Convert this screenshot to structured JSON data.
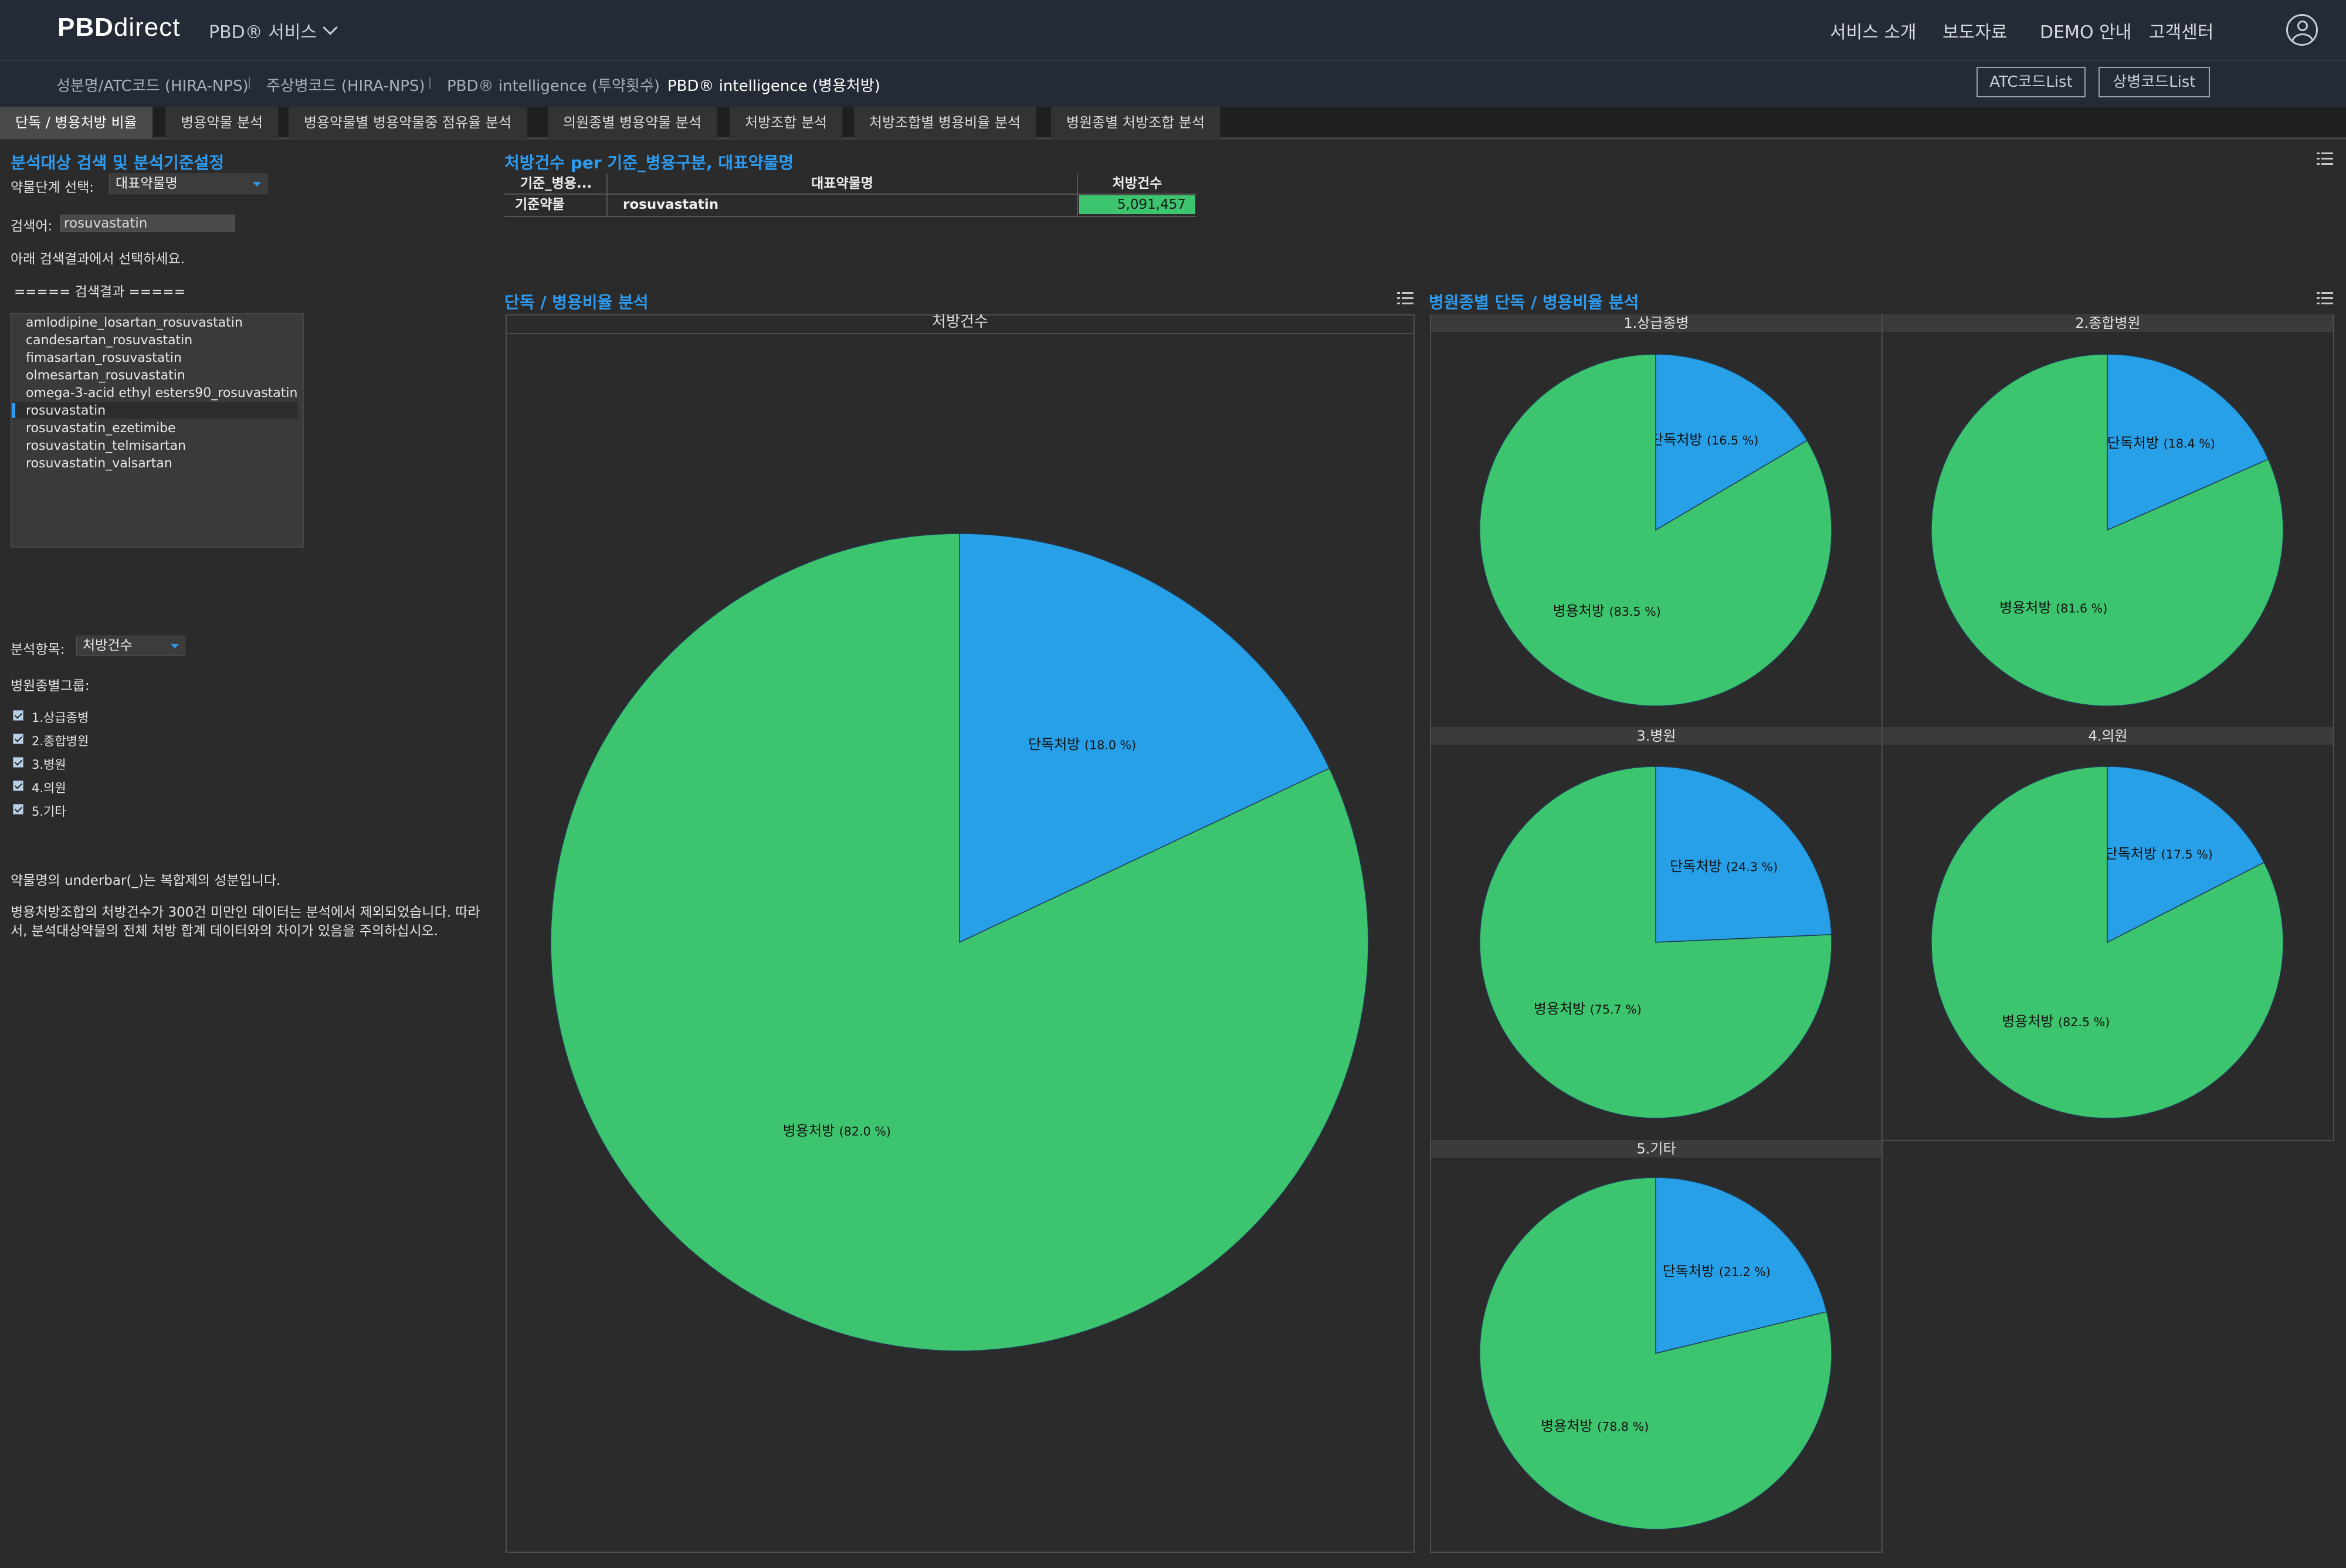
{
  "topbar": {
    "logo_bold": "PBD",
    "logo_light": "direct",
    "service_menu": "PBD® 서비스",
    "menu": [
      "서비스 소개",
      "보도자료",
      "DEMO 안내",
      "고객센터"
    ]
  },
  "subnav": {
    "items": [
      "성분명/ATC코드 (HIRA-NPS)",
      "주상병코드 (HIRA-NPS)",
      "PBD® intelligence (투약횟수)",
      "PBD® intelligence (병용처방)"
    ],
    "buttons": [
      "ATC코드List",
      "상병코드List"
    ]
  },
  "tabs": [
    "단독 / 병용처방 비율",
    "병용약물 분석",
    "병용약물별 병용약물중 점유율 분석",
    "의원종별 병용약물 분석",
    "처방조합 분석",
    "처방조합별 병용비율 분석",
    "병원종별 처방조합 분석"
  ],
  "left_panel": {
    "title": "분석대상 검색 및 분석기준설정",
    "drug_level_label": "약물단계 선택:",
    "drug_level_value": "대표약물명",
    "search_label": "검색어:",
    "search_value": "rosuvastatin",
    "select_hint": "아래 검색결과에서 선택하세요.",
    "results_header": "===== 검색결과 =====",
    "results": [
      "amlodipine_losartan_rosuvastatin",
      "candesartan_rosuvastatin",
      "fimasartan_rosuvastatin",
      "olmesartan_rosuvastatin",
      "omega-3-acid ethyl esters90_rosuvastatin",
      "rosuvastatin",
      "rosuvastatin_ezetimibe",
      "rosuvastatin_telmisartan",
      "rosuvastatin_valsartan"
    ],
    "selected_result": "rosuvastatin",
    "analysis_label": "분석항목:",
    "analysis_value": "처방건수",
    "hospital_group_label": "병원종별그룹:",
    "hospital_groups": [
      "1.상급종병",
      "2.종합병원",
      "3.병원",
      "4.의원",
      "5.기타"
    ],
    "note1": "약물명의 underbar(_)는 복합제의 성분입니다.",
    "note2": "병용처방조합의 처방건수가 300건 미만인 데이터는 분석에서 제외되었습니다. 따라서, 분석대상약물의 전체 처방 합계 데이터와의 차이가 있음을 주의하십시오."
  },
  "summary_table": {
    "title": "처방건수 per 기준_병용구분, 대표약물명",
    "headers": [
      "기준_병용...",
      "대표약물명",
      "처방건수"
    ],
    "row": [
      "기준약물",
      "rosuvastatin",
      "5,091,457"
    ]
  },
  "colors": {
    "single": "#27a0e8",
    "combo": "#3dc46e",
    "accent": "#2d9bf0"
  },
  "chart_data": [
    {
      "type": "pie",
      "title": "단독 / 병용비율 분석",
      "subtitle": "처방건수",
      "slices": [
        {
          "label": "단독처방",
          "value": 18.0,
          "text": "(18.0 %)"
        },
        {
          "label": "병용처방",
          "value": 82.0,
          "text": "(82.0 %)"
        }
      ]
    },
    {
      "type": "pie",
      "title": "병원종별 단독 / 병용비율 분석",
      "facets": [
        {
          "name": "1.상급종병",
          "slices": [
            {
              "label": "단독처방",
              "value": 16.5,
              "text": "(16.5 %)"
            },
            {
              "label": "병용처방",
              "value": 83.5,
              "text": "(83.5 %)"
            }
          ]
        },
        {
          "name": "2.종합병원",
          "slices": [
            {
              "label": "단독처방",
              "value": 18.4,
              "text": "(18.4 %)"
            },
            {
              "label": "병용처방",
              "value": 81.6,
              "text": "(81.6 %)"
            }
          ]
        },
        {
          "name": "3.병원",
          "slices": [
            {
              "label": "단독처방",
              "value": 24.3,
              "text": "(24.3 %)"
            },
            {
              "label": "병용처방",
              "value": 75.7,
              "text": "(75.7 %)"
            }
          ]
        },
        {
          "name": "4.의원",
          "slices": [
            {
              "label": "단독처방",
              "value": 17.5,
              "text": "(17.5 %)"
            },
            {
              "label": "병용처방",
              "value": 82.5,
              "text": "(82.5 %)"
            }
          ]
        },
        {
          "name": "5.기타",
          "slices": [
            {
              "label": "단독처방",
              "value": 21.2,
              "text": "(21.2 %)"
            },
            {
              "label": "병용처방",
              "value": 78.8,
              "text": "(78.8 %)"
            }
          ]
        }
      ]
    }
  ]
}
